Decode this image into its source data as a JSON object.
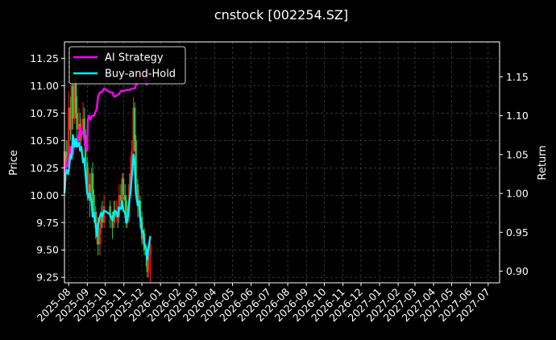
{
  "chart_data": {
    "type": "line",
    "title": "cnstock [002254.SZ]",
    "ylabel": "Price",
    "y2label": "Return",
    "ylim": [
      9.2,
      11.4
    ],
    "y2lim": [
      0.885,
      1.195
    ],
    "xlim": [
      "2025-07-25",
      "2027-07-20"
    ],
    "grid": true,
    "legend": "top-left",
    "y_ticks": [
      "9.25",
      "9.50",
      "9.75",
      "10.00",
      "10.25",
      "10.50",
      "10.75",
      "11.00",
      "11.25"
    ],
    "y2_ticks": [
      "0.90",
      "0.95",
      "1.00",
      "1.05",
      "1.10",
      "1.15"
    ],
    "x_ticks": [
      "2025-08",
      "2025-09",
      "2025-10",
      "2025-11",
      "2025-12",
      "2026-01",
      "2026-02",
      "2026-03",
      "2026-04",
      "2026-05",
      "2026-06",
      "2026-07",
      "2026-08",
      "2026-09",
      "2026-10",
      "2026-11",
      "2026-12",
      "2027-01",
      "2027-02",
      "2027-03",
      "2027-04",
      "2027-05",
      "2027-06",
      "2027-07"
    ],
    "colors": {
      "up": "#ff1a1a",
      "down": "#2ecc40",
      "ai": "#ff00ff",
      "bh": "#00f0ff",
      "grid": "#555555"
    },
    "price_bars": [
      {
        "x": "2025-07-25",
        "open": 10.05,
        "close": 10.4,
        "high": 10.5,
        "low": 10.0
      },
      {
        "x": "2025-07-28",
        "open": 10.4,
        "close": 10.3,
        "high": 10.5,
        "low": 10.2
      },
      {
        "x": "2025-07-30",
        "open": 10.3,
        "close": 10.35,
        "high": 10.5,
        "low": 10.25
      },
      {
        "x": "2025-08-01",
        "open": 10.35,
        "close": 10.8,
        "high": 10.95,
        "low": 10.3
      },
      {
        "x": "2025-08-04",
        "open": 10.8,
        "close": 10.6,
        "high": 10.9,
        "low": 10.5
      },
      {
        "x": "2025-08-06",
        "open": 10.6,
        "close": 11.0,
        "high": 11.1,
        "low": 10.55
      },
      {
        "x": "2025-08-08",
        "open": 11.0,
        "close": 10.7,
        "high": 11.05,
        "low": 10.6
      },
      {
        "x": "2025-08-11",
        "open": 10.7,
        "close": 11.05,
        "high": 11.2,
        "low": 10.65
      },
      {
        "x": "2025-08-13",
        "open": 11.05,
        "close": 10.75,
        "high": 11.1,
        "low": 10.7
      },
      {
        "x": "2025-08-15",
        "open": 10.75,
        "close": 10.6,
        "high": 10.9,
        "low": 10.5
      },
      {
        "x": "2025-08-18",
        "open": 10.6,
        "close": 10.65,
        "high": 10.8,
        "low": 10.45
      },
      {
        "x": "2025-08-20",
        "open": 10.65,
        "close": 10.5,
        "high": 10.75,
        "low": 10.4
      },
      {
        "x": "2025-08-22",
        "open": 10.5,
        "close": 10.6,
        "high": 10.7,
        "low": 10.4
      },
      {
        "x": "2025-08-25",
        "open": 10.6,
        "close": 10.7,
        "high": 10.85,
        "low": 10.55
      },
      {
        "x": "2025-08-27",
        "open": 10.7,
        "close": 10.55,
        "high": 10.8,
        "low": 10.45
      },
      {
        "x": "2025-08-29",
        "open": 10.55,
        "close": 10.3,
        "high": 10.6,
        "low": 10.2
      },
      {
        "x": "2025-09-01",
        "open": 10.3,
        "close": 10.05,
        "high": 10.35,
        "low": 9.95
      },
      {
        "x": "2025-09-03",
        "open": 10.05,
        "close": 10.1,
        "high": 10.25,
        "low": 9.95
      },
      {
        "x": "2025-09-05",
        "open": 10.1,
        "close": 9.95,
        "high": 10.2,
        "low": 9.8
      },
      {
        "x": "2025-09-08",
        "open": 9.95,
        "close": 10.2,
        "high": 10.25,
        "low": 9.9
      },
      {
        "x": "2025-09-10",
        "open": 10.2,
        "close": 10.0,
        "high": 10.3,
        "low": 9.9
      },
      {
        "x": "2025-09-12",
        "open": 10.0,
        "close": 9.85,
        "high": 10.05,
        "low": 9.75
      },
      {
        "x": "2025-09-15",
        "open": 9.85,
        "close": 9.7,
        "high": 9.9,
        "low": 9.6
      },
      {
        "x": "2025-09-17",
        "open": 9.7,
        "close": 9.75,
        "high": 9.85,
        "low": 9.55
      },
      {
        "x": "2025-09-19",
        "open": 9.75,
        "close": 9.55,
        "high": 9.8,
        "low": 9.45
      },
      {
        "x": "2025-09-22",
        "open": 9.55,
        "close": 9.7,
        "high": 9.8,
        "low": 9.45
      },
      {
        "x": "2025-09-24",
        "open": 9.7,
        "close": 9.8,
        "high": 9.9,
        "low": 9.65
      },
      {
        "x": "2025-09-26",
        "open": 9.8,
        "close": 9.75,
        "high": 9.95,
        "low": 9.7
      },
      {
        "x": "2025-09-29",
        "open": 9.75,
        "close": 9.9,
        "high": 10.0,
        "low": 9.7
      },
      {
        "x": "2025-10-09",
        "open": 9.9,
        "close": 9.8,
        "high": 9.95,
        "low": 9.7
      },
      {
        "x": "2025-10-13",
        "open": 9.8,
        "close": 9.7,
        "high": 9.85,
        "low": 9.6
      },
      {
        "x": "2025-10-15",
        "open": 9.7,
        "close": 9.85,
        "high": 9.95,
        "low": 9.7
      },
      {
        "x": "2025-10-17",
        "open": 9.85,
        "close": 9.8,
        "high": 9.95,
        "low": 9.75
      },
      {
        "x": "2025-10-20",
        "open": 9.8,
        "close": 9.85,
        "high": 9.95,
        "low": 9.75
      },
      {
        "x": "2025-10-22",
        "open": 9.85,
        "close": 9.8,
        "high": 9.9,
        "low": 9.7
      },
      {
        "x": "2025-10-24",
        "open": 9.8,
        "close": 10.0,
        "high": 10.1,
        "low": 9.75
      },
      {
        "x": "2025-10-27",
        "open": 10.0,
        "close": 9.95,
        "high": 10.1,
        "low": 9.9
      },
      {
        "x": "2025-10-29",
        "open": 9.95,
        "close": 10.15,
        "high": 10.2,
        "low": 9.9
      },
      {
        "x": "2025-10-31",
        "open": 10.15,
        "close": 10.0,
        "high": 10.2,
        "low": 9.95
      },
      {
        "x": "2025-11-03",
        "open": 10.0,
        "close": 9.95,
        "high": 10.1,
        "low": 9.85
      },
      {
        "x": "2025-11-05",
        "open": 9.95,
        "close": 9.75,
        "high": 10.0,
        "low": 9.7
      },
      {
        "x": "2025-11-07",
        "open": 9.75,
        "close": 9.8,
        "high": 9.9,
        "low": 9.7
      },
      {
        "x": "2025-11-10",
        "open": 9.8,
        "close": 10.1,
        "high": 10.2,
        "low": 9.75
      },
      {
        "x": "2025-11-12",
        "open": 10.1,
        "close": 10.2,
        "high": 10.35,
        "low": 10.05
      },
      {
        "x": "2025-11-14",
        "open": 10.2,
        "close": 10.4,
        "high": 10.5,
        "low": 10.15
      },
      {
        "x": "2025-11-17",
        "open": 10.4,
        "close": 10.8,
        "high": 10.9,
        "low": 10.35
      },
      {
        "x": "2025-11-19",
        "open": 10.8,
        "close": 10.5,
        "high": 10.85,
        "low": 10.4
      },
      {
        "x": "2025-11-21",
        "open": 10.5,
        "close": 10.1,
        "high": 10.55,
        "low": 10.0
      },
      {
        "x": "2025-11-24",
        "open": 10.1,
        "close": 9.9,
        "high": 10.15,
        "low": 9.8
      },
      {
        "x": "2025-11-26",
        "open": 9.9,
        "close": 9.95,
        "high": 10.05,
        "low": 9.8
      },
      {
        "x": "2025-11-28",
        "open": 9.95,
        "close": 9.8,
        "high": 10.0,
        "low": 9.7
      },
      {
        "x": "2025-12-01",
        "open": 9.8,
        "close": 9.6,
        "high": 9.85,
        "low": 9.55
      },
      {
        "x": "2025-12-03",
        "open": 9.6,
        "close": 9.65,
        "high": 9.75,
        "low": 9.55
      },
      {
        "x": "2025-12-05",
        "open": 9.65,
        "close": 9.5,
        "high": 9.7,
        "low": 9.45
      },
      {
        "x": "2025-12-08",
        "open": 9.5,
        "close": 9.45,
        "high": 9.55,
        "low": 9.35
      },
      {
        "x": "2025-12-10",
        "open": 9.45,
        "close": 9.3,
        "high": 9.5,
        "low": 9.25
      },
      {
        "x": "2025-12-12",
        "open": 9.3,
        "close": 9.45,
        "high": 9.55,
        "low": 9.25
      },
      {
        "x": "2025-12-15",
        "open": 9.45,
        "close": 9.55,
        "high": 9.6,
        "low": 9.2
      }
    ],
    "series": [
      {
        "name": "AI Strategy",
        "axis": "right",
        "points": [
          {
            "x": "2025-07-25",
            "y": 1.0
          },
          {
            "x": "2025-07-28",
            "y": 1.04
          },
          {
            "x": "2025-07-31",
            "y": 1.035
          },
          {
            "x": "2025-08-04",
            "y": 1.06
          },
          {
            "x": "2025-08-06",
            "y": 1.05
          },
          {
            "x": "2025-08-08",
            "y": 1.05
          },
          {
            "x": "2025-08-11",
            "y": 1.07
          },
          {
            "x": "2025-08-13",
            "y": 1.06
          },
          {
            "x": "2025-08-15",
            "y": 1.06
          },
          {
            "x": "2025-08-18",
            "y": 1.075
          },
          {
            "x": "2025-08-20",
            "y": 1.085
          },
          {
            "x": "2025-08-22",
            "y": 1.075
          },
          {
            "x": "2025-08-25",
            "y": 1.08
          },
          {
            "x": "2025-08-27",
            "y": 1.07
          },
          {
            "x": "2025-08-29",
            "y": 1.06
          },
          {
            "x": "2025-09-01",
            "y": 1.055
          },
          {
            "x": "2025-09-02",
            "y": 1.095
          },
          {
            "x": "2025-09-04",
            "y": 1.1
          },
          {
            "x": "2025-09-06",
            "y": 1.095
          },
          {
            "x": "2025-09-09",
            "y": 1.1
          },
          {
            "x": "2025-09-12",
            "y": 1.1
          },
          {
            "x": "2025-09-15",
            "y": 1.105
          },
          {
            "x": "2025-09-17",
            "y": 1.11
          },
          {
            "x": "2025-09-19",
            "y": 1.125
          },
          {
            "x": "2025-09-22",
            "y": 1.13
          },
          {
            "x": "2025-09-25",
            "y": 1.13
          },
          {
            "x": "2025-09-29",
            "y": 1.135
          },
          {
            "x": "2025-10-09",
            "y": 1.13
          },
          {
            "x": "2025-10-13",
            "y": 1.13
          },
          {
            "x": "2025-10-15",
            "y": 1.125
          },
          {
            "x": "2025-10-18",
            "y": 1.125
          },
          {
            "x": "2025-10-22",
            "y": 1.127
          },
          {
            "x": "2025-10-24",
            "y": 1.128
          },
          {
            "x": "2025-10-27",
            "y": 1.132
          },
          {
            "x": "2025-10-31",
            "y": 1.132
          },
          {
            "x": "2025-11-05",
            "y": 1.133
          },
          {
            "x": "2025-11-10",
            "y": 1.133
          },
          {
            "x": "2025-11-14",
            "y": 1.135
          },
          {
            "x": "2025-11-19",
            "y": 1.135
          },
          {
            "x": "2025-11-24",
            "y": 1.145
          },
          {
            "x": "2025-11-28",
            "y": 1.15
          },
          {
            "x": "2025-12-03",
            "y": 1.15
          },
          {
            "x": "2025-12-06",
            "y": 1.145
          },
          {
            "x": "2025-12-09",
            "y": 1.14
          },
          {
            "x": "2025-12-10",
            "y": 1.16
          }
        ]
      },
      {
        "name": "Buy-and-Hold",
        "axis": "right",
        "points": [
          {
            "x": "2025-07-25",
            "y": 1.0
          },
          {
            "x": "2025-07-27",
            "y": 1.025
          },
          {
            "x": "2025-07-29",
            "y": 1.03
          },
          {
            "x": "2025-07-31",
            "y": 1.025
          },
          {
            "x": "2025-08-02",
            "y": 1.035
          },
          {
            "x": "2025-08-04",
            "y": 1.05
          },
          {
            "x": "2025-08-06",
            "y": 1.045
          },
          {
            "x": "2025-08-08",
            "y": 1.075
          },
          {
            "x": "2025-08-11",
            "y": 1.06
          },
          {
            "x": "2025-08-13",
            "y": 1.07
          },
          {
            "x": "2025-08-15",
            "y": 1.06
          },
          {
            "x": "2025-08-18",
            "y": 1.065
          },
          {
            "x": "2025-08-20",
            "y": 1.055
          },
          {
            "x": "2025-08-22",
            "y": 1.06
          },
          {
            "x": "2025-08-25",
            "y": 1.04
          },
          {
            "x": "2025-08-27",
            "y": 1.045
          },
          {
            "x": "2025-08-29",
            "y": 1.025
          },
          {
            "x": "2025-09-01",
            "y": 1.0
          },
          {
            "x": "2025-09-03",
            "y": 0.995
          },
          {
            "x": "2025-09-05",
            "y": 1.0
          },
          {
            "x": "2025-09-08",
            "y": 0.99
          },
          {
            "x": "2025-09-10",
            "y": 0.97
          },
          {
            "x": "2025-09-12",
            "y": 0.975
          },
          {
            "x": "2025-09-15",
            "y": 0.96
          },
          {
            "x": "2025-09-17",
            "y": 0.945
          },
          {
            "x": "2025-09-19",
            "y": 0.96
          },
          {
            "x": "2025-09-22",
            "y": 0.97
          },
          {
            "x": "2025-09-24",
            "y": 0.975
          },
          {
            "x": "2025-09-26",
            "y": 0.97
          },
          {
            "x": "2025-09-29",
            "y": 0.978
          },
          {
            "x": "2025-10-09",
            "y": 0.973
          },
          {
            "x": "2025-10-13",
            "y": 0.965
          },
          {
            "x": "2025-10-15",
            "y": 0.975
          },
          {
            "x": "2025-10-17",
            "y": 0.978
          },
          {
            "x": "2025-10-20",
            "y": 0.975
          },
          {
            "x": "2025-10-22",
            "y": 0.97
          },
          {
            "x": "2025-10-24",
            "y": 0.982
          },
          {
            "x": "2025-10-27",
            "y": 0.98
          },
          {
            "x": "2025-10-29",
            "y": 0.99
          },
          {
            "x": "2025-10-31",
            "y": 0.978
          },
          {
            "x": "2025-11-03",
            "y": 0.975
          },
          {
            "x": "2025-11-05",
            "y": 0.962
          },
          {
            "x": "2025-11-07",
            "y": 0.965
          },
          {
            "x": "2025-11-10",
            "y": 0.99
          },
          {
            "x": "2025-11-12",
            "y": 1.0
          },
          {
            "x": "2025-11-14",
            "y": 1.02
          },
          {
            "x": "2025-11-17",
            "y": 1.05
          },
          {
            "x": "2025-11-19",
            "y": 1.04
          },
          {
            "x": "2025-11-21",
            "y": 1.0
          },
          {
            "x": "2025-11-24",
            "y": 0.985
          },
          {
            "x": "2025-11-26",
            "y": 0.99
          },
          {
            "x": "2025-11-28",
            "y": 0.97
          },
          {
            "x": "2025-12-01",
            "y": 0.95
          },
          {
            "x": "2025-12-03",
            "y": 0.952
          },
          {
            "x": "2025-12-05",
            "y": 0.935
          },
          {
            "x": "2025-12-08",
            "y": 0.93
          },
          {
            "x": "2025-12-10",
            "y": 0.915
          },
          {
            "x": "2025-12-12",
            "y": 0.93
          },
          {
            "x": "2025-12-15",
            "y": 0.945
          }
        ]
      }
    ]
  }
}
